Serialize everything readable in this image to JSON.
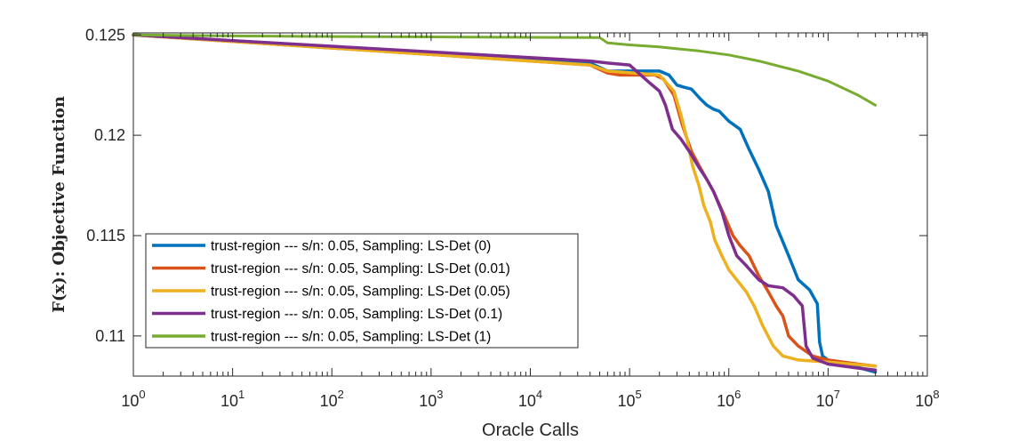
{
  "chart_data": {
    "type": "line",
    "title": "",
    "xlabel": "Oracle Calls",
    "ylabel": "F(x): Objective Function",
    "xscale": "log",
    "xlim": [
      1,
      100000000
    ],
    "ylim": [
      0.108,
      0.1251
    ],
    "xticks": [
      {
        "value": 1,
        "base": "10",
        "exp": "0"
      },
      {
        "value": 10,
        "base": "10",
        "exp": "1"
      },
      {
        "value": 100,
        "base": "10",
        "exp": "2"
      },
      {
        "value": 1000,
        "base": "10",
        "exp": "3"
      },
      {
        "value": 10000,
        "base": "10",
        "exp": "4"
      },
      {
        "value": 100000,
        "base": "10",
        "exp": "5"
      },
      {
        "value": 1000000,
        "base": "10",
        "exp": "6"
      },
      {
        "value": 10000000,
        "base": "10",
        "exp": "7"
      },
      {
        "value": 100000000,
        "base": "10",
        "exp": "8"
      }
    ],
    "yticks": [
      {
        "value": 0.11,
        "label": "0.11"
      },
      {
        "value": 0.115,
        "label": "0.115"
      },
      {
        "value": 0.12,
        "label": "0.12"
      },
      {
        "value": 0.125,
        "label": "0.125"
      }
    ],
    "legend_position": "bottom-left",
    "series": [
      {
        "name": "trust-region --- s/n: 0.05, Sampling: LS-Det (0)",
        "color": "#0072BD",
        "points": [
          [
            1,
            0.125
          ],
          [
            40000,
            0.1236
          ],
          [
            60000,
            0.1232
          ],
          [
            200000,
            0.1232
          ],
          [
            250000,
            0.123
          ],
          [
            300000,
            0.1225
          ],
          [
            350000,
            0.1224
          ],
          [
            420000,
            0.1223
          ],
          [
            520000,
            0.1218
          ],
          [
            600000,
            0.1215
          ],
          [
            700000,
            0.1213
          ],
          [
            800000,
            0.1212
          ],
          [
            1000000,
            0.1207
          ],
          [
            1300000,
            0.1203
          ],
          [
            1600000,
            0.1193
          ],
          [
            2000000,
            0.1183
          ],
          [
            2500000,
            0.1172
          ],
          [
            3000000,
            0.1155
          ],
          [
            4000000,
            0.114
          ],
          [
            5000000,
            0.1128
          ],
          [
            6500000,
            0.1123
          ],
          [
            7800000,
            0.1116
          ],
          [
            8200000,
            0.1097
          ],
          [
            8800000,
            0.109
          ],
          [
            10000000,
            0.1088
          ],
          [
            15000000,
            0.1086
          ],
          [
            30000000,
            0.1082
          ]
        ]
      },
      {
        "name": "trust-region --- s/n: 0.05, Sampling: LS-Det (0.01)",
        "color": "#D95319",
        "points": [
          [
            1,
            0.125
          ],
          [
            40000,
            0.1235
          ],
          [
            60000,
            0.1231
          ],
          [
            80000,
            0.123
          ],
          [
            180000,
            0.123
          ],
          [
            220000,
            0.1228
          ],
          [
            280000,
            0.122
          ],
          [
            340000,
            0.1205
          ],
          [
            420000,
            0.1192
          ],
          [
            500000,
            0.1185
          ],
          [
            600000,
            0.1178
          ],
          [
            700000,
            0.1172
          ],
          [
            900000,
            0.116
          ],
          [
            1100000,
            0.115
          ],
          [
            1300000,
            0.1145
          ],
          [
            1600000,
            0.114
          ],
          [
            2000000,
            0.113
          ],
          [
            2500000,
            0.1122
          ],
          [
            3000000,
            0.1115
          ],
          [
            3500000,
            0.111
          ],
          [
            4000000,
            0.11
          ],
          [
            5000000,
            0.1095
          ],
          [
            7000000,
            0.109
          ],
          [
            10000000,
            0.1088
          ],
          [
            20000000,
            0.1086
          ],
          [
            30000000,
            0.1085
          ]
        ]
      },
      {
        "name": "trust-region --- s/n: 0.05, Sampling: LS-Det (0.05)",
        "color": "#EDB120",
        "points": [
          [
            1,
            0.125
          ],
          [
            40000,
            0.1235
          ],
          [
            60000,
            0.1232
          ],
          [
            200000,
            0.123
          ],
          [
            280000,
            0.1222
          ],
          [
            330000,
            0.121
          ],
          [
            380000,
            0.1198
          ],
          [
            430000,
            0.1185
          ],
          [
            500000,
            0.1175
          ],
          [
            560000,
            0.1165
          ],
          [
            650000,
            0.1157
          ],
          [
            720000,
            0.1148
          ],
          [
            850000,
            0.114
          ],
          [
            1000000,
            0.1133
          ],
          [
            1200000,
            0.1128
          ],
          [
            1500000,
            0.1122
          ],
          [
            1800000,
            0.1115
          ],
          [
            2200000,
            0.1105
          ],
          [
            2800000,
            0.1095
          ],
          [
            3500000,
            0.109
          ],
          [
            5000000,
            0.1088
          ],
          [
            10000000,
            0.1087
          ],
          [
            30000000,
            0.1085
          ]
        ]
      },
      {
        "name": "trust-region --- s/n: 0.05, Sampling: LS-Det (0.1)",
        "color": "#7E2F8E",
        "points": [
          [
            1,
            0.125
          ],
          [
            40000,
            0.1237
          ],
          [
            60000,
            0.1236
          ],
          [
            100000,
            0.1235
          ],
          [
            130000,
            0.123
          ],
          [
            160000,
            0.1226
          ],
          [
            200000,
            0.1222
          ],
          [
            230000,
            0.1215
          ],
          [
            270000,
            0.1203
          ],
          [
            330000,
            0.1198
          ],
          [
            400000,
            0.1192
          ],
          [
            500000,
            0.1184
          ],
          [
            600000,
            0.1178
          ],
          [
            700000,
            0.1172
          ],
          [
            850000,
            0.1162
          ],
          [
            1000000,
            0.115
          ],
          [
            1200000,
            0.114
          ],
          [
            1500000,
            0.1135
          ],
          [
            2000000,
            0.1128
          ],
          [
            2500000,
            0.1125
          ],
          [
            3500000,
            0.1124
          ],
          [
            4500000,
            0.112
          ],
          [
            5500000,
            0.1115
          ],
          [
            6000000,
            0.1095
          ],
          [
            7000000,
            0.1089
          ],
          [
            10000000,
            0.1086
          ],
          [
            20000000,
            0.1084
          ],
          [
            30000000,
            0.1083
          ]
        ]
      },
      {
        "name": "trust-region --- s/n: 0.05, Sampling: LS-Det (1)",
        "color": "#77AC30",
        "points": [
          [
            1,
            0.125
          ],
          [
            10,
            0.12495
          ],
          [
            100,
            0.12492
          ],
          [
            1000,
            0.1249
          ],
          [
            10000,
            0.12488
          ],
          [
            50000,
            0.12487
          ],
          [
            60000,
            0.1246
          ],
          [
            100000,
            0.1245
          ],
          [
            200000,
            0.1244
          ],
          [
            500000,
            0.1242
          ],
          [
            1000000,
            0.124
          ],
          [
            2000000,
            0.1237
          ],
          [
            5000000,
            0.1232
          ],
          [
            10000000,
            0.1227
          ],
          [
            20000000,
            0.122
          ],
          [
            30000000,
            0.1215
          ]
        ]
      }
    ]
  }
}
